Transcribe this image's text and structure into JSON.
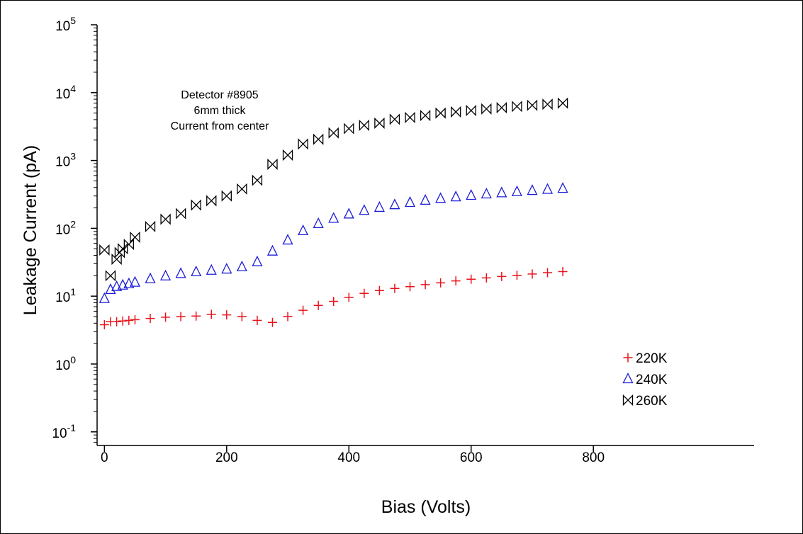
{
  "chart_data": {
    "type": "scatter",
    "xlabel": "Bias (Volts)",
    "ylabel": "Leakage Current (pA)",
    "xlim": [
      -12,
      1063
    ],
    "ylim": [
      0.063,
      100000
    ],
    "y_scale": "log",
    "grid": false,
    "x_ticks": [
      {
        "value": 0,
        "label": "0"
      },
      {
        "value": 200,
        "label": "200"
      },
      {
        "value": 400,
        "label": "400"
      },
      {
        "value": 600,
        "label": "600"
      },
      {
        "value": 800,
        "label": "800"
      }
    ],
    "y_ticks": [
      {
        "value": 0.1,
        "base": "10",
        "exp": "-1"
      },
      {
        "value": 1,
        "base": "10",
        "exp": "0"
      },
      {
        "value": 10,
        "base": "10",
        "exp": "1"
      },
      {
        "value": 100,
        "base": "10",
        "exp": "2"
      },
      {
        "value": 1000,
        "base": "10",
        "exp": "3"
      },
      {
        "value": 10000,
        "base": "10",
        "exp": "4"
      },
      {
        "value": 100000,
        "base": "10",
        "exp": "5"
      }
    ],
    "annotation": [
      "Detector #8905",
      "6mm thick",
      "Current from center"
    ],
    "legend_position": "bottom-right",
    "series": [
      {
        "name": "220K",
        "marker": "plus",
        "color": "#e8141c",
        "x": [
          0,
          10,
          20,
          30,
          40,
          50,
          75,
          100,
          125,
          150,
          175,
          200,
          225,
          250,
          275,
          300,
          325,
          350,
          375,
          400,
          425,
          450,
          475,
          500,
          525,
          550,
          575,
          600,
          625,
          650,
          675,
          700,
          725,
          750
        ],
        "y": [
          3.8,
          4.2,
          4.2,
          4.3,
          4.4,
          4.5,
          4.7,
          4.9,
          5.0,
          5.1,
          5.4,
          5.3,
          5.0,
          4.4,
          4.1,
          5.0,
          6.2,
          7.3,
          8.4,
          9.6,
          11.0,
          12.1,
          13.0,
          13.8,
          14.8,
          15.7,
          16.8,
          17.8,
          18.6,
          19.5,
          20.3,
          21.2,
          22.2,
          23.0
        ]
      },
      {
        "name": "240K",
        "marker": "triangle",
        "color": "#1c1cd6",
        "x": [
          0,
          10,
          20,
          30,
          40,
          50,
          75,
          100,
          125,
          150,
          175,
          200,
          225,
          250,
          275,
          300,
          325,
          350,
          375,
          400,
          425,
          450,
          475,
          500,
          525,
          550,
          575,
          600,
          625,
          650,
          675,
          700,
          725,
          750
        ],
        "y": [
          9.2,
          12.5,
          13.8,
          14.5,
          15.2,
          16.0,
          18.0,
          19.8,
          21.5,
          22.8,
          24.0,
          25.0,
          27.0,
          32.0,
          46.0,
          67.0,
          92.0,
          117.0,
          140.0,
          162.0,
          183.0,
          203.0,
          222.0,
          240.0,
          258.0,
          275.0,
          290.0,
          305.0,
          320.0,
          333.0,
          346.0,
          360.0,
          374.0,
          387.0
        ]
      },
      {
        "name": "260K",
        "marker": "bowtie",
        "color": "#000000",
        "x": [
          0,
          10,
          20,
          25,
          30,
          40,
          50,
          75,
          100,
          125,
          150,
          175,
          200,
          225,
          250,
          275,
          300,
          325,
          350,
          375,
          400,
          425,
          450,
          475,
          500,
          525,
          550,
          575,
          600,
          625,
          650,
          675,
          700,
          725,
          750
        ],
        "y": [
          48,
          20,
          35,
          44,
          50,
          58,
          74,
          106,
          136,
          165,
          220,
          255,
          300,
          380,
          510,
          880,
          1200,
          1750,
          2050,
          2550,
          2950,
          3300,
          3550,
          4050,
          4300,
          4600,
          5000,
          5200,
          5450,
          5750,
          6000,
          6250,
          6500,
          6750,
          7000
        ]
      }
    ]
  }
}
